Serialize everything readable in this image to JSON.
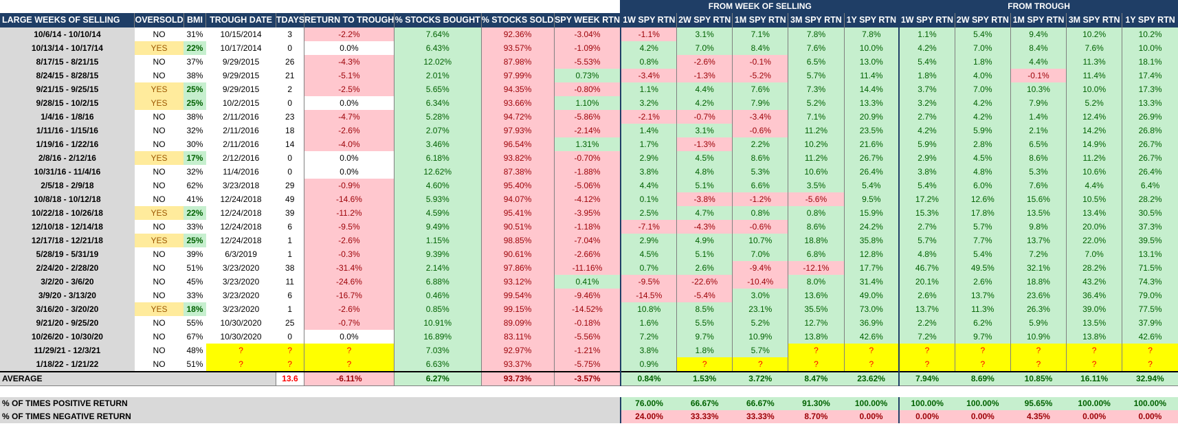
{
  "group_headers": {
    "from_week": "FROM WEEK OF SELLING",
    "from_trough": "FROM TROUGH"
  },
  "headers": [
    "LARGE WEEKS OF SELLING",
    "OVERSOLD",
    "BMI",
    "TROUGH DATE",
    "TDAYS",
    "RETURN TO TROUGH",
    "% STOCKS BOUGHT",
    "% STOCKS SOLD",
    "SPY WEEK RTN",
    "1W SPY RTN",
    "2W SPY RTN",
    "1M SPY RTN",
    "3M SPY RTN",
    "1Y SPY RTN",
    "1W SPY RTN",
    "2W SPY RTN",
    "1M SPY RTN",
    "3M SPY RTN",
    "1Y SPY RTN"
  ],
  "rows": [
    [
      "10/6/14 - 10/10/14",
      "NO",
      "31%",
      "10/15/2014",
      "3",
      "-2.2%",
      "7.64%",
      "92.36%",
      "-3.04%",
      "-1.1%",
      "3.1%",
      "7.1%",
      "7.8%",
      "7.8%",
      "1.1%",
      "5.4%",
      "9.4%",
      "10.2%",
      "10.2%"
    ],
    [
      "10/13/14 - 10/17/14",
      "YES",
      "22%",
      "10/17/2014",
      "0",
      "0.0%",
      "6.43%",
      "93.57%",
      "-1.09%",
      "4.2%",
      "7.0%",
      "8.4%",
      "7.6%",
      "10.0%",
      "4.2%",
      "7.0%",
      "8.4%",
      "7.6%",
      "10.0%"
    ],
    [
      "8/17/15 - 8/21/15",
      "NO",
      "37%",
      "9/29/2015",
      "26",
      "-4.3%",
      "12.02%",
      "87.98%",
      "-5.53%",
      "0.8%",
      "-2.6%",
      "-0.1%",
      "6.5%",
      "13.0%",
      "5.4%",
      "1.8%",
      "4.4%",
      "11.3%",
      "18.1%"
    ],
    [
      "8/24/15 - 8/28/15",
      "NO",
      "38%",
      "9/29/2015",
      "21",
      "-5.1%",
      "2.01%",
      "97.99%",
      "0.73%",
      "-3.4%",
      "-1.3%",
      "-5.2%",
      "5.7%",
      "11.4%",
      "1.8%",
      "4.0%",
      "-0.1%",
      "11.4%",
      "17.4%"
    ],
    [
      "9/21/15 - 9/25/15",
      "YES",
      "25%",
      "9/29/2015",
      "2",
      "-2.5%",
      "5.65%",
      "94.35%",
      "-0.80%",
      "1.1%",
      "4.4%",
      "7.6%",
      "7.3%",
      "14.4%",
      "3.7%",
      "7.0%",
      "10.3%",
      "10.0%",
      "17.3%"
    ],
    [
      "9/28/15 - 10/2/15",
      "YES",
      "25%",
      "10/2/2015",
      "0",
      "0.0%",
      "6.34%",
      "93.66%",
      "1.10%",
      "3.2%",
      "4.2%",
      "7.9%",
      "5.2%",
      "13.3%",
      "3.2%",
      "4.2%",
      "7.9%",
      "5.2%",
      "13.3%"
    ],
    [
      "1/4/16 - 1/8/16",
      "NO",
      "38%",
      "2/11/2016",
      "23",
      "-4.7%",
      "5.28%",
      "94.72%",
      "-5.86%",
      "-2.1%",
      "-0.7%",
      "-3.4%",
      "7.1%",
      "20.9%",
      "2.7%",
      "4.2%",
      "1.4%",
      "12.4%",
      "26.9%"
    ],
    [
      "1/11/16 - 1/15/16",
      "NO",
      "32%",
      "2/11/2016",
      "18",
      "-2.6%",
      "2.07%",
      "97.93%",
      "-2.14%",
      "1.4%",
      "3.1%",
      "-0.6%",
      "11.2%",
      "23.5%",
      "4.2%",
      "5.9%",
      "2.1%",
      "14.2%",
      "26.8%"
    ],
    [
      "1/19/16 - 1/22/16",
      "NO",
      "30%",
      "2/11/2016",
      "14",
      "-4.0%",
      "3.46%",
      "96.54%",
      "1.31%",
      "1.7%",
      "-1.3%",
      "2.2%",
      "10.2%",
      "21.6%",
      "5.9%",
      "2.8%",
      "6.5%",
      "14.9%",
      "26.7%"
    ],
    [
      "2/8/16 - 2/12/16",
      "YES",
      "17%",
      "2/12/2016",
      "0",
      "0.0%",
      "6.18%",
      "93.82%",
      "-0.70%",
      "2.9%",
      "4.5%",
      "8.6%",
      "11.2%",
      "26.7%",
      "2.9%",
      "4.5%",
      "8.6%",
      "11.2%",
      "26.7%"
    ],
    [
      "10/31/16 - 11/4/16",
      "NO",
      "32%",
      "11/4/2016",
      "0",
      "0.0%",
      "12.62%",
      "87.38%",
      "-1.88%",
      "3.8%",
      "4.8%",
      "5.3%",
      "10.6%",
      "26.4%",
      "3.8%",
      "4.8%",
      "5.3%",
      "10.6%",
      "26.4%"
    ],
    [
      "2/5/18 - 2/9/18",
      "NO",
      "62%",
      "3/23/2018",
      "29",
      "-0.9%",
      "4.60%",
      "95.40%",
      "-5.06%",
      "4.4%",
      "5.1%",
      "6.6%",
      "3.5%",
      "5.4%",
      "5.4%",
      "6.0%",
      "7.6%",
      "4.4%",
      "6.4%"
    ],
    [
      "10/8/18 - 10/12/18",
      "NO",
      "41%",
      "12/24/2018",
      "49",
      "-14.6%",
      "5.93%",
      "94.07%",
      "-4.12%",
      "0.1%",
      "-3.8%",
      "-1.2%",
      "-5.6%",
      "9.5%",
      "17.2%",
      "12.6%",
      "15.6%",
      "10.5%",
      "28.2%"
    ],
    [
      "10/22/18 - 10/26/18",
      "YES",
      "22%",
      "12/24/2018",
      "39",
      "-11.2%",
      "4.59%",
      "95.41%",
      "-3.95%",
      "2.5%",
      "4.7%",
      "0.8%",
      "0.8%",
      "15.9%",
      "15.3%",
      "17.8%",
      "13.5%",
      "13.4%",
      "30.5%"
    ],
    [
      "12/10/18 - 12/14/18",
      "NO",
      "33%",
      "12/24/2018",
      "6",
      "-9.5%",
      "9.49%",
      "90.51%",
      "-1.18%",
      "-7.1%",
      "-4.3%",
      "-0.6%",
      "8.6%",
      "24.2%",
      "2.7%",
      "5.7%",
      "9.8%",
      "20.0%",
      "37.3%"
    ],
    [
      "12/17/18 - 12/21/18",
      "YES",
      "25%",
      "12/24/2018",
      "1",
      "-2.6%",
      "1.15%",
      "98.85%",
      "-7.04%",
      "2.9%",
      "4.9%",
      "10.7%",
      "18.8%",
      "35.8%",
      "5.7%",
      "7.7%",
      "13.7%",
      "22.0%",
      "39.5%"
    ],
    [
      "5/28/19 - 5/31/19",
      "NO",
      "39%",
      "6/3/2019",
      "1",
      "-0.3%",
      "9.39%",
      "90.61%",
      "-2.66%",
      "4.5%",
      "5.1%",
      "7.0%",
      "6.8%",
      "12.8%",
      "4.8%",
      "5.4%",
      "7.2%",
      "7.0%",
      "13.1%"
    ],
    [
      "2/24/20 - 2/28/20",
      "NO",
      "51%",
      "3/23/2020",
      "38",
      "-31.4%",
      "2.14%",
      "97.86%",
      "-11.16%",
      "0.7%",
      "2.6%",
      "-9.4%",
      "-12.1%",
      "17.7%",
      "46.7%",
      "49.5%",
      "32.1%",
      "28.2%",
      "71.5%"
    ],
    [
      "3/2/20 - 3/6/20",
      "NO",
      "45%",
      "3/23/2020",
      "11",
      "-24.6%",
      "6.88%",
      "93.12%",
      "0.41%",
      "-9.5%",
      "-22.6%",
      "-10.4%",
      "8.0%",
      "31.4%",
      "20.1%",
      "2.6%",
      "18.8%",
      "43.2%",
      "74.3%"
    ],
    [
      "3/9/20 - 3/13/20",
      "NO",
      "33%",
      "3/23/2020",
      "6",
      "-16.7%",
      "0.46%",
      "99.54%",
      "-9.46%",
      "-14.5%",
      "-5.4%",
      "3.0%",
      "13.6%",
      "49.0%",
      "2.6%",
      "13.7%",
      "23.6%",
      "36.4%",
      "79.0%"
    ],
    [
      "3/16/20 - 3/20/20",
      "YES",
      "18%",
      "3/23/2020",
      "1",
      "-2.6%",
      "0.85%",
      "99.15%",
      "-14.52%",
      "10.8%",
      "8.5%",
      "23.1%",
      "35.5%",
      "73.0%",
      "13.7%",
      "11.3%",
      "26.3%",
      "39.0%",
      "77.5%"
    ],
    [
      "9/21/20 - 9/25/20",
      "NO",
      "55%",
      "10/30/2020",
      "25",
      "-0.7%",
      "10.91%",
      "89.09%",
      "-0.18%",
      "1.6%",
      "5.5%",
      "5.2%",
      "12.7%",
      "36.9%",
      "2.2%",
      "6.2%",
      "5.9%",
      "13.5%",
      "37.9%"
    ],
    [
      "10/26/20 - 10/30/20",
      "NO",
      "67%",
      "10/30/2020",
      "0",
      "0.0%",
      "16.89%",
      "83.11%",
      "-5.56%",
      "7.2%",
      "9.7%",
      "10.9%",
      "13.8%",
      "42.6%",
      "7.2%",
      "9.7%",
      "10.9%",
      "13.8%",
      "42.6%"
    ],
    [
      "11/29/21 - 12/3/21",
      "NO",
      "48%",
      "?",
      "?",
      "?",
      "7.03%",
      "92.97%",
      "-1.21%",
      "3.8%",
      "1.8%",
      "5.7%",
      "?",
      "?",
      "?",
      "?",
      "?",
      "?",
      "?"
    ],
    [
      "1/18/22 - 1/21/22",
      "NO",
      "51%",
      "?",
      "?",
      "?",
      "6.63%",
      "93.37%",
      "-5.75%",
      "0.9%",
      "?",
      "?",
      "?",
      "?",
      "?",
      "?",
      "?",
      "?",
      "?"
    ]
  ],
  "average": {
    "label": "AVERAGE",
    "tdays": "13.6",
    "return_to_trough": "-6.11%",
    "bought": "6.27%",
    "sold": "93.73%",
    "spy_week": "-3.57%",
    "from_week": [
      "0.84%",
      "1.53%",
      "3.72%",
      "8.47%",
      "23.62%"
    ],
    "from_trough": [
      "7.94%",
      "8.69%",
      "10.85%",
      "16.11%",
      "32.94%"
    ]
  },
  "positive": {
    "label": "% OF TIMES POSITIVE RETURN",
    "from_week": [
      "76.00%",
      "66.67%",
      "66.67%",
      "91.30%",
      "100.00%"
    ],
    "from_trough": [
      "100.00%",
      "100.00%",
      "95.65%",
      "100.00%",
      "100.00%"
    ]
  },
  "negative": {
    "label": "% OF TIMES NEGATIVE RETURN",
    "from_week": [
      "24.00%",
      "33.33%",
      "33.33%",
      "8.70%",
      "0.00%"
    ],
    "from_trough": [
      "0.00%",
      "0.00%",
      "4.35%",
      "0.00%",
      "0.00%"
    ]
  },
  "colors": {
    "header_bg": "#1f3e66",
    "neg_fill": "#ffc7ce",
    "pos_fill": "#c6efce",
    "yes_fill": "#ffeb9c",
    "unknown_fill": "#ffff00",
    "label_fill": "#d9d9d9"
  }
}
